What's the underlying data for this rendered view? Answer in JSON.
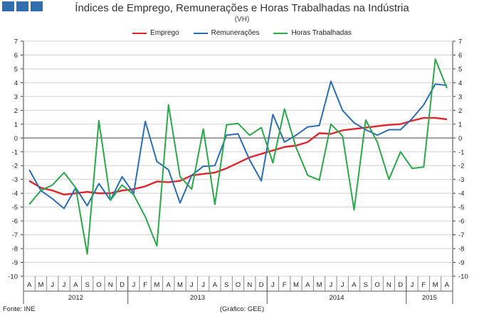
{
  "chart_data": {
    "type": "line",
    "title": "Índices de Emprego, Remunerações e Horas Trabalhadas na Indústria",
    "subtitle": "(VH)",
    "source": "Fonte: INE",
    "credit": "(Gráfico: GEE)",
    "ylim": [
      -10,
      7
    ],
    "yticks": [
      7,
      6,
      5,
      4,
      3,
      2,
      1,
      0,
      -1,
      -2,
      -3,
      -4,
      -5,
      -6,
      -7,
      -8,
      -9,
      -10
    ],
    "categories": [
      "A",
      "M",
      "J",
      "J",
      "A",
      "S",
      "O",
      "N",
      "D",
      "J",
      "F",
      "M",
      "A",
      "M",
      "J",
      "J",
      "A",
      "S",
      "O",
      "N",
      "D",
      "J",
      "F",
      "M",
      "A",
      "M",
      "J",
      "J",
      "A",
      "S",
      "O",
      "N",
      "D",
      "J",
      "F",
      "M",
      "A"
    ],
    "years": [
      {
        "label": "2012",
        "start": 0,
        "end": 8
      },
      {
        "label": "2013",
        "start": 9,
        "end": 20
      },
      {
        "label": "2014",
        "start": 21,
        "end": 32
      },
      {
        "label": "2015",
        "start": 33,
        "end": 36
      }
    ],
    "series": [
      {
        "name": "Emprego",
        "color": "#e0262b",
        "values": [
          -3.1,
          -3.6,
          -3.8,
          -4.1,
          -4.0,
          -3.9,
          -4.0,
          -4.0,
          -3.8,
          -3.7,
          -3.5,
          -3.15,
          -3.2,
          -3.1,
          -2.7,
          -2.6,
          -2.5,
          -2.2,
          -1.8,
          -1.4,
          -1.15,
          -0.9,
          -0.65,
          -0.55,
          -0.3,
          0.35,
          0.3,
          0.55,
          0.65,
          0.75,
          0.85,
          0.95,
          1.0,
          1.25,
          1.45,
          1.45,
          1.35
        ]
      },
      {
        "name": "Remunerações",
        "color": "#2a6db5",
        "values": [
          -2.3,
          -3.8,
          -4.4,
          -5.1,
          -3.6,
          -4.9,
          -3.3,
          -4.5,
          -2.8,
          -4.0,
          1.2,
          -1.7,
          -2.3,
          -4.7,
          -2.7,
          -2.05,
          -2.0,
          0.2,
          0.3,
          -1.6,
          -3.1,
          1.7,
          -0.3,
          0.2,
          0.8,
          0.9,
          4.1,
          2.0,
          1.1,
          0.6,
          0.2,
          0.6,
          0.6,
          1.4,
          2.4,
          3.9,
          3.8
        ]
      },
      {
        "name": "Horas Trabalhadas",
        "color": "#2aa84a",
        "values": [
          -4.8,
          -3.8,
          -3.4,
          -2.5,
          -3.6,
          -8.4,
          1.25,
          -4.5,
          -3.4,
          -4.1,
          -5.7,
          -7.8,
          2.4,
          -2.8,
          -3.7,
          0.65,
          -4.8,
          0.95,
          1.05,
          0.2,
          0.75,
          -1.8,
          2.1,
          -0.7,
          -2.7,
          -3.05,
          1.0,
          0.15,
          -5.2,
          1.3,
          -0.3,
          -3.0,
          -1.0,
          -2.2,
          -2.1,
          5.7,
          3.6
        ]
      }
    ]
  }
}
